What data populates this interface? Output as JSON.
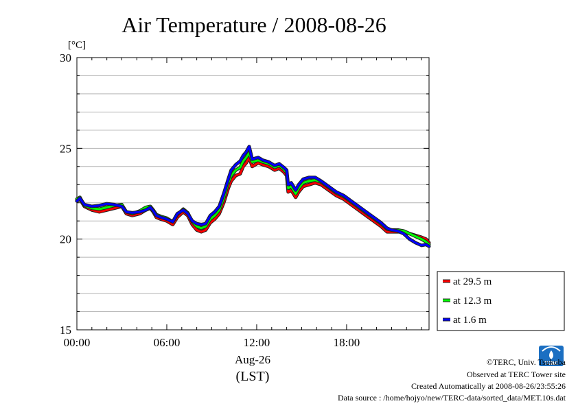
{
  "chart_data": {
    "type": "line",
    "title": "Air Temperature / 2008-08-26",
    "ylabel": "[°C]",
    "ylim": [
      15,
      30
    ],
    "yticks": [
      15,
      20,
      25,
      30
    ],
    "x_range_hours": [
      0,
      23.5
    ],
    "xticks": [
      {
        "hour": 0,
        "label": "00:00"
      },
      {
        "hour": 6,
        "label": "06:00"
      },
      {
        "hour": 12,
        "label": "12:00"
      },
      {
        "hour": 18,
        "label": "18:00"
      }
    ],
    "date_label": "Aug-26",
    "tz_label": "(LST)",
    "grid": true,
    "legend_position": "right-bottom-outside",
    "series": [
      {
        "name": "at 29.5 m",
        "color": "#ff0000",
        "x": [
          0,
          0.2,
          0.5,
          1,
          1.5,
          2,
          2.5,
          3,
          3.3,
          3.7,
          4.2,
          4.6,
          4.9,
          5.1,
          5.3,
          5.6,
          6,
          6.4,
          6.7,
          7.1,
          7.4,
          7.7,
          8,
          8.3,
          8.6,
          8.9,
          9.2,
          9.5,
          9.8,
          10.1,
          10.3,
          10.6,
          10.9,
          11.1,
          11.3,
          11.5,
          11.7,
          11.9,
          12.1,
          12.4,
          12.8,
          13.2,
          13.5,
          13.8,
          14,
          14.1,
          14.3,
          14.6,
          14.8,
          15.1,
          15.5,
          15.9,
          16.3,
          16.8,
          17.3,
          17.8,
          18.3,
          18.8,
          19.3,
          19.8,
          20.3,
          20.7,
          21,
          21.4,
          21.8,
          22.2,
          22.6,
          23,
          23.3,
          23.5
        ],
        "y": [
          22.1,
          22.2,
          21.8,
          21.6,
          21.5,
          21.6,
          21.7,
          21.8,
          21.4,
          21.3,
          21.4,
          21.6,
          21.7,
          21.5,
          21.2,
          21.1,
          21.0,
          20.8,
          21.2,
          21.5,
          21.3,
          20.8,
          20.5,
          20.4,
          20.5,
          20.9,
          21.1,
          21.4,
          22.0,
          22.8,
          23.2,
          23.5,
          23.6,
          24.0,
          24.2,
          24.5,
          24.0,
          24.1,
          24.2,
          24.1,
          24.0,
          23.8,
          23.9,
          23.7,
          23.5,
          22.6,
          22.7,
          22.3,
          22.6,
          22.9,
          23.0,
          23.1,
          23.0,
          22.7,
          22.4,
          22.2,
          21.9,
          21.6,
          21.3,
          21.0,
          20.7,
          20.4,
          20.4,
          20.4,
          20.4,
          20.3,
          20.2,
          20.1,
          20.0,
          19.8
        ]
      },
      {
        "name": "at 12.3 m",
        "color": "#00ff00",
        "x": [
          0,
          0.2,
          0.5,
          1,
          1.5,
          2,
          2.5,
          3,
          3.3,
          3.7,
          4.2,
          4.6,
          4.9,
          5.1,
          5.3,
          5.6,
          6,
          6.4,
          6.7,
          7.1,
          7.4,
          7.7,
          8,
          8.3,
          8.6,
          8.9,
          9.2,
          9.5,
          9.8,
          10.1,
          10.3,
          10.6,
          10.9,
          11.1,
          11.3,
          11.5,
          11.7,
          11.9,
          12.1,
          12.4,
          12.8,
          13.2,
          13.5,
          13.8,
          14,
          14.1,
          14.3,
          14.6,
          14.8,
          15.1,
          15.5,
          15.9,
          16.3,
          16.8,
          17.3,
          17.8,
          18.3,
          18.8,
          19.3,
          19.8,
          20.3,
          20.7,
          21,
          21.4,
          21.8,
          22.2,
          22.6,
          23,
          23.3,
          23.5
        ],
        "y": [
          22.2,
          22.3,
          21.85,
          21.7,
          21.65,
          21.75,
          21.85,
          21.9,
          21.5,
          21.4,
          21.55,
          21.75,
          21.8,
          21.6,
          21.35,
          21.25,
          21.15,
          20.95,
          21.35,
          21.65,
          21.45,
          20.95,
          20.7,
          20.6,
          20.7,
          21.1,
          21.3,
          21.6,
          22.25,
          23.1,
          23.5,
          23.8,
          23.95,
          24.3,
          24.5,
          24.75,
          24.25,
          24.3,
          24.35,
          24.25,
          24.15,
          23.95,
          24.05,
          23.85,
          23.65,
          22.8,
          22.9,
          22.5,
          22.8,
          23.1,
          23.2,
          23.25,
          23.15,
          22.85,
          22.55,
          22.35,
          22.05,
          21.75,
          21.45,
          21.15,
          20.85,
          20.55,
          20.5,
          20.5,
          20.45,
          20.3,
          20.15,
          20.0,
          19.85,
          19.7
        ]
      },
      {
        "name": "at 1.6 m",
        "color": "#0000ff",
        "x": [
          0,
          0.2,
          0.5,
          1,
          1.5,
          2,
          2.5,
          3,
          3.3,
          3.7,
          4.2,
          4.6,
          4.9,
          5.1,
          5.3,
          5.6,
          6,
          6.4,
          6.7,
          7.1,
          7.4,
          7.7,
          8,
          8.3,
          8.6,
          8.9,
          9.2,
          9.5,
          9.8,
          10.1,
          10.3,
          10.6,
          10.9,
          11.1,
          11.3,
          11.5,
          11.7,
          11.9,
          12.1,
          12.4,
          12.8,
          13.2,
          13.5,
          13.8,
          14,
          14.1,
          14.3,
          14.6,
          14.8,
          15.1,
          15.5,
          15.9,
          16.3,
          16.8,
          17.3,
          17.8,
          18.3,
          18.8,
          19.3,
          19.8,
          20.3,
          20.7,
          21,
          21.4,
          21.8,
          22.2,
          22.6,
          23,
          23.3,
          23.5
        ],
        "y": [
          22.1,
          22.25,
          21.9,
          21.8,
          21.85,
          21.95,
          21.9,
          21.8,
          21.5,
          21.45,
          21.5,
          21.6,
          21.75,
          21.55,
          21.3,
          21.2,
          21.1,
          20.95,
          21.4,
          21.6,
          21.4,
          21.0,
          20.85,
          20.8,
          20.85,
          21.3,
          21.5,
          21.8,
          22.5,
          23.3,
          23.8,
          24.1,
          24.3,
          24.6,
          24.8,
          25.1,
          24.4,
          24.45,
          24.5,
          24.35,
          24.25,
          24.05,
          24.15,
          23.95,
          23.8,
          23.0,
          23.1,
          22.7,
          23.0,
          23.3,
          23.4,
          23.4,
          23.2,
          22.9,
          22.6,
          22.4,
          22.1,
          21.8,
          21.5,
          21.2,
          20.9,
          20.6,
          20.5,
          20.45,
          20.3,
          20.0,
          19.8,
          19.65,
          19.7,
          19.6
        ]
      }
    ]
  },
  "footer": {
    "copyright": "©TERC, Univ. Tsukuba",
    "observed": "Observed at TERC Tower site",
    "created": "Created Automatically at 2008-08-26/23:55:26",
    "source": "Data source : /home/hojyo/new/TERC-data/sorted_data/MET.10s.dat"
  },
  "logo": {
    "text": "TERC",
    "color": "#1b6fc2"
  }
}
